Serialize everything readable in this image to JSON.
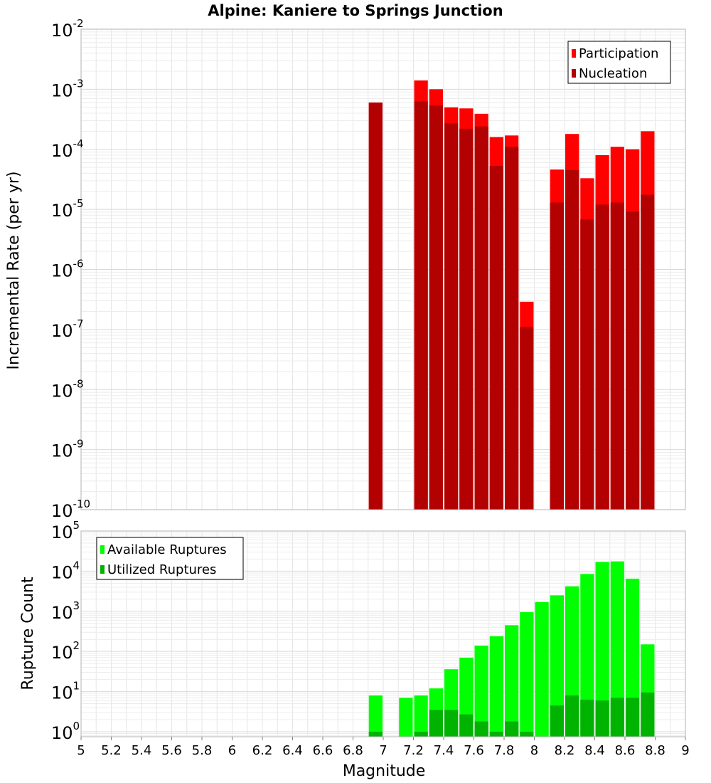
{
  "chart_data": [
    {
      "type": "bar",
      "title": "Alpine: Kaniere to Springs Junction",
      "ylabel": "Incremental Rate (per yr)",
      "xlabel": "",
      "xlim": [
        5,
        9
      ],
      "ylim": [
        1e-10,
        0.01
      ],
      "yscale": "log",
      "bar_width": 0.1,
      "legend_position": "top-right",
      "grid": true,
      "ytick_exponents": [
        "-10",
        "-9",
        "-8",
        "-7",
        "-6",
        "-5",
        "-4",
        "-3",
        "-2"
      ],
      "ytick_base": "10",
      "x": [
        6.95,
        7.25,
        7.35,
        7.45,
        7.55,
        7.65,
        7.75,
        7.85,
        7.95,
        8.15,
        8.25,
        8.35,
        8.45,
        8.55,
        8.65,
        8.75
      ],
      "series": [
        {
          "name": "Participation",
          "color": "#ff0000",
          "values": [
            0.0006,
            0.0014,
            0.001,
            0.0005,
            0.00048,
            0.00039,
            0.00016,
            0.00017,
            2.9e-07,
            4.6e-05,
            0.00018,
            3.3e-05,
            8e-05,
            0.00011,
            0.0001,
            0.0002
          ]
        },
        {
          "name": "Nucleation",
          "color": "#b30000",
          "values": [
            0.0006,
            0.00063,
            0.00054,
            0.00027,
            0.00022,
            0.00024,
            5.3e-05,
            0.00011,
            1.1e-07,
            1.3e-05,
            4.5e-05,
            6.8e-06,
            1.2e-05,
            1.3e-05,
            9.2e-06,
            1.75e-05
          ]
        }
      ]
    },
    {
      "type": "bar",
      "title": "",
      "ylabel": "Rupture Count",
      "xlabel": "Magnitude",
      "xlim": [
        5,
        9
      ],
      "ylim": [
        0.75,
        100000.0
      ],
      "yscale": "log",
      "bar_width": 0.1,
      "legend_position": "top-left",
      "grid": true,
      "ytick_exponents": [
        "0",
        "1",
        "2",
        "3",
        "4",
        "5"
      ],
      "ytick_base": "10",
      "xticks": [
        "5",
        "5.2",
        "5.4",
        "5.6",
        "5.8",
        "6",
        "6.2",
        "6.4",
        "6.6",
        "6.8",
        "7",
        "7.2",
        "7.4",
        "7.6",
        "7.8",
        "8",
        "8.2",
        "8.4",
        "8.6",
        "8.8",
        "9"
      ],
      "x": [
        6.95,
        7.15,
        7.25,
        7.35,
        7.45,
        7.55,
        7.65,
        7.75,
        7.85,
        7.95,
        8.05,
        8.15,
        8.25,
        8.35,
        8.45,
        8.55,
        8.65,
        8.75
      ],
      "series": [
        {
          "name": "Available Ruptures",
          "color": "#00ff00",
          "values": [
            8,
            7,
            8,
            12,
            36,
            70,
            140,
            240,
            450,
            950,
            1700,
            2500,
            4200,
            8500,
            17000,
            17500,
            6500,
            150
          ]
        },
        {
          "name": "Utilized Ruptures",
          "color": "#00b300",
          "values": [
            1,
            0,
            1,
            3.5,
            3.5,
            2.7,
            1.8,
            1,
            1.8,
            1,
            0,
            4.5,
            8,
            6.3,
            6.0,
            7,
            7,
            9.5
          ]
        }
      ]
    }
  ]
}
